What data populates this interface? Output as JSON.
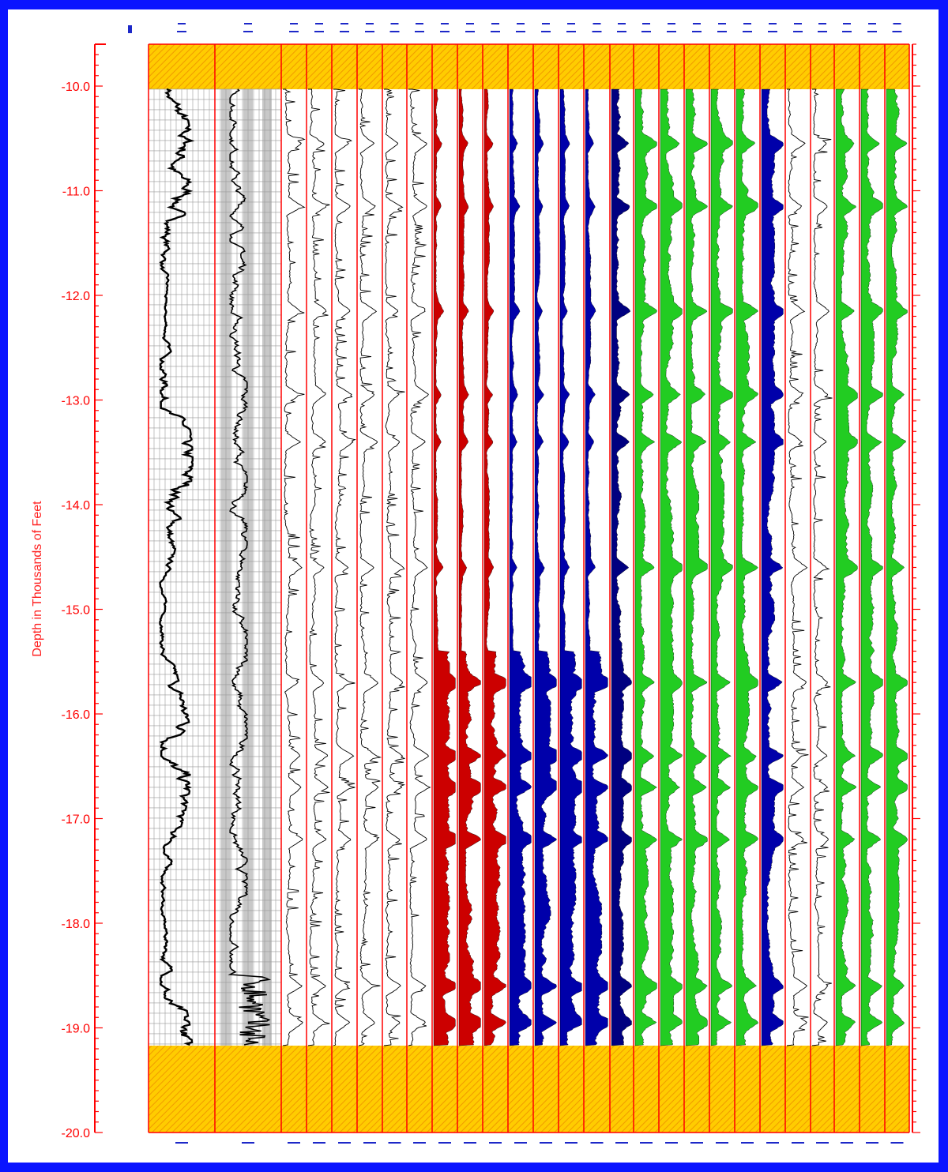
{
  "chart_data": {
    "type": "line",
    "ylabel": "Depth in Thousands of Feet",
    "ylim": [
      -20.0,
      -9.6
    ],
    "y_ticks": [
      "-10.0",
      "-11.0",
      "-12.0",
      "-13.0",
      "-14.0",
      "-15.0",
      "-16.0",
      "-17.0",
      "-18.0",
      "-19.0",
      "-20.0"
    ],
    "y_tick_values": [
      -10,
      -11,
      -12,
      -13,
      -14,
      -15,
      -16,
      -17,
      -18,
      -19,
      -20
    ],
    "data_range": [
      -19.17,
      -10.03
    ],
    "no_data_fill": "hatched-orange",
    "grid": true,
    "tracks": [
      {
        "color": "#000000",
        "style": "curve",
        "gridded": true
      },
      {
        "color": "#000000",
        "style": "curve",
        "gridded": true,
        "shaded_bands": true
      },
      {
        "color": "#000000",
        "style": "bars"
      },
      {
        "color": "#000000",
        "style": "bars"
      },
      {
        "color": "#000000",
        "style": "bars"
      },
      {
        "color": "#000000",
        "style": "bars"
      },
      {
        "color": "#000000",
        "style": "bars"
      },
      {
        "color": "#000000",
        "style": "bars"
      },
      {
        "color": "#cc0000",
        "style": "filled"
      },
      {
        "color": "#cc0000",
        "style": "filled"
      },
      {
        "color": "#cc0000",
        "style": "filled"
      },
      {
        "color": "#0000aa",
        "style": "filled"
      },
      {
        "color": "#0000aa",
        "style": "filled"
      },
      {
        "color": "#0000aa",
        "style": "filled"
      },
      {
        "color": "#0000aa",
        "style": "filled"
      },
      {
        "color": "#000080",
        "style": "filled"
      },
      {
        "color": "#22cc22",
        "style": "filled"
      },
      {
        "color": "#22cc22",
        "style": "filled"
      },
      {
        "color": "#22cc22",
        "style": "filled"
      },
      {
        "color": "#22cc22",
        "style": "filled"
      },
      {
        "color": "#22cc22",
        "style": "filled"
      },
      {
        "color": "#0000aa",
        "style": "filled"
      },
      {
        "color": "#000000",
        "style": "bars"
      },
      {
        "color": "#000000",
        "style": "bars"
      },
      {
        "color": "#22cc22",
        "style": "filled"
      },
      {
        "color": "#22cc22",
        "style": "filled"
      },
      {
        "color": "#22cc22",
        "style": "filled"
      }
    ],
    "events": [
      -10.55,
      -11.15,
      -12.15,
      -12.95,
      -13.4,
      -14.6,
      -15.7,
      -16.4,
      -16.7,
      -17.2,
      -18.6,
      -18.95
    ]
  },
  "colors": {
    "background": "#0a14ff",
    "panel": "#ffffff",
    "axis": "#ff0000",
    "hatch": "#ffbb00",
    "grid": "#9a9a9a",
    "band": "#c8c8c8",
    "header_ink": "#1d28c8"
  }
}
